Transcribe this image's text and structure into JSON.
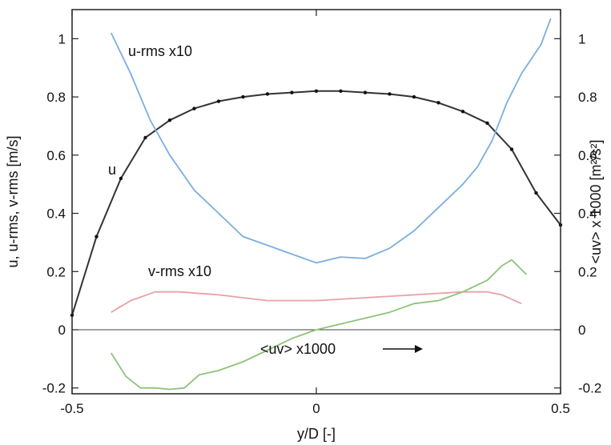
{
  "chart_data": {
    "type": "line",
    "xlabel": "y/D [-]",
    "ylabel": "u, u-rms, v-rms [m/s]",
    "y2label": "<uv> x 1000  [m²/s²]",
    "xlim": [
      -0.5,
      0.5
    ],
    "ylim": [
      -0.22,
      1.1
    ],
    "x_ticks": [
      -0.5,
      0,
      0.5
    ],
    "x_tick_labels": [
      "-0.5",
      "0",
      "0.5"
    ],
    "y_ticks": [
      -0.2,
      0,
      0.2,
      0.4,
      0.6,
      0.8,
      1
    ],
    "y_tick_labels": [
      "-0.2",
      "0",
      "0.2",
      "0.4",
      "0.6",
      "0.8",
      "1"
    ],
    "y2_tick_labels": [
      "-0.2",
      "0",
      "0.2",
      "0.4",
      "0.6",
      "0.8",
      "1"
    ],
    "grid": false,
    "series": [
      {
        "name": "u",
        "color": "#333333",
        "markers": true,
        "x": [
          -0.5,
          -0.45,
          -0.4,
          -0.35,
          -0.3,
          -0.25,
          -0.2,
          -0.15,
          -0.1,
          -0.05,
          0,
          0.05,
          0.1,
          0.15,
          0.2,
          0.25,
          0.3,
          0.35,
          0.4,
          0.45,
          0.5
        ],
        "y": [
          0.05,
          0.32,
          0.52,
          0.66,
          0.72,
          0.76,
          0.785,
          0.8,
          0.81,
          0.815,
          0.82,
          0.82,
          0.815,
          0.81,
          0.8,
          0.78,
          0.75,
          0.71,
          0.62,
          0.47,
          0.36
        ]
      },
      {
        "name": "u-rms x10",
        "color": "#7aaee0",
        "x": [
          -0.42,
          -0.38,
          -0.34,
          -0.3,
          -0.25,
          -0.2,
          -0.15,
          -0.1,
          -0.05,
          0,
          0.05,
          0.1,
          0.15,
          0.2,
          0.25,
          0.3,
          0.33,
          0.36,
          0.39,
          0.42,
          0.46,
          0.48
        ],
        "y": [
          1.02,
          0.88,
          0.72,
          0.6,
          0.48,
          0.4,
          0.32,
          0.29,
          0.26,
          0.23,
          0.25,
          0.245,
          0.28,
          0.34,
          0.42,
          0.5,
          0.56,
          0.65,
          0.78,
          0.88,
          0.98,
          1.07
        ]
      },
      {
        "name": "v-rms x10",
        "color": "#e8a0a8",
        "x": [
          -0.42,
          -0.38,
          -0.33,
          -0.28,
          -0.2,
          -0.1,
          0,
          0.1,
          0.2,
          0.3,
          0.35,
          0.38,
          0.42
        ],
        "y": [
          0.06,
          0.1,
          0.13,
          0.13,
          0.12,
          0.1,
          0.1,
          0.11,
          0.12,
          0.13,
          0.13,
          0.12,
          0.09
        ]
      },
      {
        "name": "<uv> x1000",
        "color": "#8ec37a",
        "x": [
          -0.42,
          -0.39,
          -0.36,
          -0.33,
          -0.3,
          -0.27,
          -0.24,
          -0.2,
          -0.15,
          -0.1,
          -0.05,
          0,
          0.05,
          0.1,
          0.15,
          0.2,
          0.25,
          0.3,
          0.35,
          0.38,
          0.4,
          0.43
        ],
        "y": [
          -0.08,
          -0.16,
          -0.2,
          -0.2,
          -0.205,
          -0.2,
          -0.155,
          -0.14,
          -0.11,
          -0.07,
          -0.03,
          0.0,
          0.02,
          0.04,
          0.06,
          0.09,
          0.1,
          0.13,
          0.17,
          0.22,
          0.24,
          0.19
        ]
      }
    ],
    "annotations": [
      {
        "text": "u-rms x10"
      },
      {
        "text": "u"
      },
      {
        "text": "v-rms x10"
      },
      {
        "text": "<uv> x1000"
      }
    ]
  }
}
